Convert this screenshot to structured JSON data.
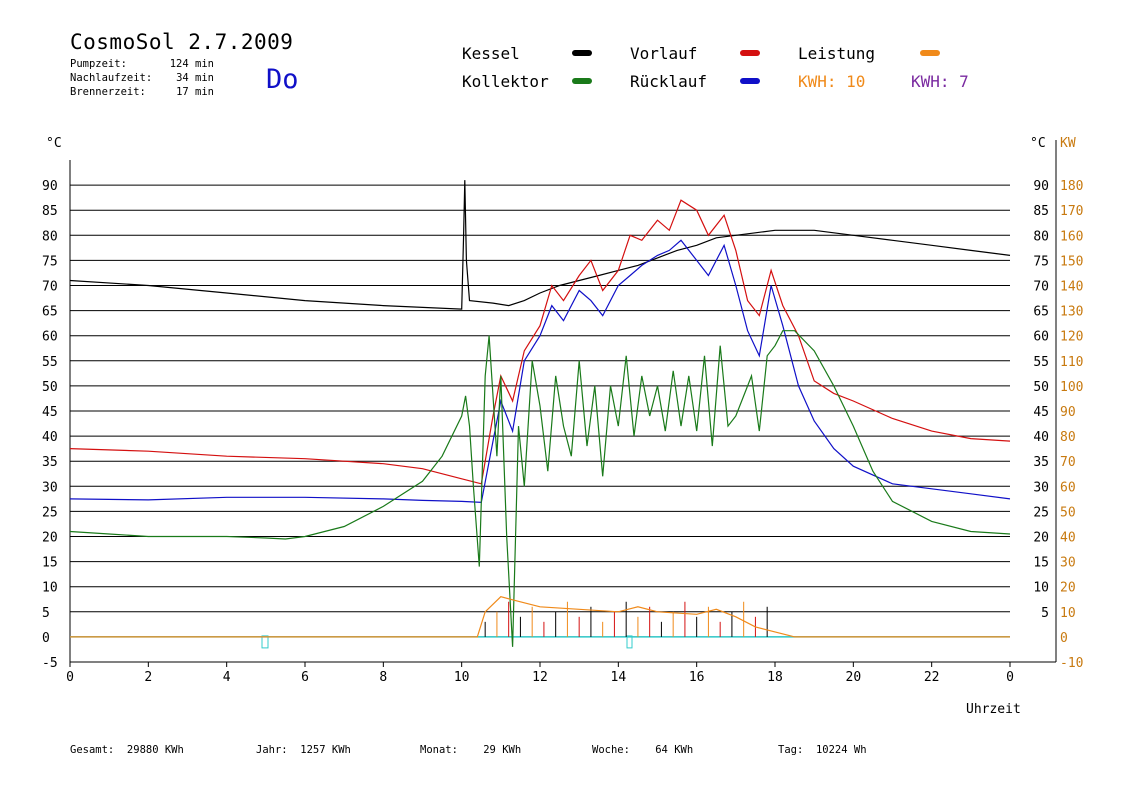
{
  "header": {
    "title": "CosmoSol 2.7.2009",
    "day": "Do",
    "pump_label": "Pumpzeit:",
    "pump_value": "124 min",
    "nachlauf_label": "Nachlaufzeit:",
    "nachlauf_value": "34 min",
    "brenner_label": "Brennerzeit:",
    "brenner_value": "17 min"
  },
  "legend": {
    "kessel": "Kessel",
    "kollektor": "Kollektor",
    "vorlauf": "Vorlauf",
    "ruecklauf": "Rücklauf",
    "leistung": "Leistung",
    "kwh1": "KWH: 10",
    "kwh2": "KWH: 7"
  },
  "colors": {
    "kessel": "#000000",
    "kollektor": "#1a7a1a",
    "vorlauf": "#d41010",
    "ruecklauf": "#1010c8",
    "leistung": "#f08a1a",
    "kwh2": "#7a2aa0",
    "zero_line": "#33cccc"
  },
  "footer": {
    "gesamt_label": "Gesamt:",
    "gesamt_value": "29880 KWh",
    "jahr_label": "Jahr:",
    "jahr_value": "1257 KWh",
    "monat_label": "Monat:",
    "monat_value": "29 KWh",
    "woche_label": "Woche:",
    "woche_value": "64 KWh",
    "tag_label": "Tag:",
    "tag_value": "10224 Wh"
  },
  "chart_data": {
    "type": "line",
    "xlabel": "Uhrzeit",
    "ylabel_left": "°C",
    "ylabel_right_1": "°C",
    "ylabel_right_2": "KW",
    "xlim": [
      0,
      24
    ],
    "ylim": [
      -5,
      95
    ],
    "x_ticks": [
      "0",
      "2",
      "4",
      "6",
      "8",
      "10",
      "12",
      "14",
      "16",
      "18",
      "20",
      "22",
      "0"
    ],
    "y_ticks": [
      "-5",
      "0",
      "5",
      "10",
      "15",
      "20",
      "25",
      "30",
      "35",
      "40",
      "45",
      "50",
      "55",
      "60",
      "65",
      "70",
      "75",
      "80",
      "85",
      "90"
    ],
    "y_ticks_right_degC": [
      "5",
      "10",
      "15",
      "20",
      "25",
      "30",
      "35",
      "40",
      "45",
      "50",
      "55",
      "60",
      "65",
      "70",
      "75",
      "80",
      "85",
      "90"
    ],
    "y_ticks_right_kw": [
      "-10",
      "0",
      "10",
      "20",
      "30",
      "40",
      "50",
      "60",
      "70",
      "80",
      "90",
      "100",
      "110",
      "120",
      "130",
      "140",
      "150",
      "160",
      "170",
      "180"
    ],
    "grid": true,
    "series": [
      {
        "name": "Kessel",
        "color_key": "kessel",
        "points": [
          [
            0,
            71
          ],
          [
            2,
            70
          ],
          [
            4,
            68.5
          ],
          [
            6,
            67
          ],
          [
            8,
            66
          ],
          [
            10,
            65.3
          ],
          [
            10.05,
            80
          ],
          [
            10.08,
            91
          ],
          [
            10.12,
            75
          ],
          [
            10.2,
            67
          ],
          [
            10.8,
            66.5
          ],
          [
            11.2,
            66
          ],
          [
            11.6,
            67
          ],
          [
            12,
            68.5
          ],
          [
            12.5,
            70
          ],
          [
            13,
            71
          ],
          [
            13.5,
            72
          ],
          [
            14,
            73
          ],
          [
            14.5,
            74
          ],
          [
            15,
            75.5
          ],
          [
            15.5,
            77
          ],
          [
            16,
            78
          ],
          [
            16.5,
            79.5
          ],
          [
            17,
            80
          ],
          [
            17.5,
            80.5
          ],
          [
            18,
            81
          ],
          [
            18.5,
            81
          ],
          [
            19,
            81
          ],
          [
            20,
            80
          ],
          [
            21,
            79
          ],
          [
            22,
            78
          ],
          [
            23,
            77
          ],
          [
            24,
            76
          ]
        ]
      },
      {
        "name": "Vorlauf",
        "color_key": "vorlauf",
        "points": [
          [
            0,
            37.5
          ],
          [
            2,
            37
          ],
          [
            4,
            36
          ],
          [
            6,
            35.5
          ],
          [
            8,
            34.5
          ],
          [
            9,
            33.5
          ],
          [
            10,
            31.5
          ],
          [
            10.5,
            30.5
          ],
          [
            10.8,
            44
          ],
          [
            11,
            52
          ],
          [
            11.3,
            47
          ],
          [
            11.6,
            57
          ],
          [
            12,
            62
          ],
          [
            12.3,
            70
          ],
          [
            12.6,
            67
          ],
          [
            13,
            72
          ],
          [
            13.3,
            75
          ],
          [
            13.6,
            69
          ],
          [
            14,
            73
          ],
          [
            14.3,
            80
          ],
          [
            14.6,
            79
          ],
          [
            15,
            83
          ],
          [
            15.3,
            81
          ],
          [
            15.6,
            87
          ],
          [
            16,
            85
          ],
          [
            16.3,
            80
          ],
          [
            16.7,
            84
          ],
          [
            17,
            77
          ],
          [
            17.3,
            67
          ],
          [
            17.6,
            64
          ],
          [
            17.9,
            73
          ],
          [
            18.2,
            66
          ],
          [
            18.6,
            60
          ],
          [
            19,
            51
          ],
          [
            19.5,
            48.5
          ],
          [
            20,
            47
          ],
          [
            21,
            43.5
          ],
          [
            22,
            41
          ],
          [
            23,
            39.5
          ],
          [
            24,
            39
          ]
        ]
      },
      {
        "name": "Rücklauf",
        "color_key": "ruecklauf",
        "points": [
          [
            0,
            27.5
          ],
          [
            2,
            27.3
          ],
          [
            4,
            27.8
          ],
          [
            6,
            27.8
          ],
          [
            8,
            27.5
          ],
          [
            9,
            27.2
          ],
          [
            10,
            27
          ],
          [
            10.5,
            26.8
          ],
          [
            10.8,
            39
          ],
          [
            11,
            47
          ],
          [
            11.3,
            41
          ],
          [
            11.6,
            55
          ],
          [
            12,
            60
          ],
          [
            12.3,
            66
          ],
          [
            12.6,
            63
          ],
          [
            13,
            69
          ],
          [
            13.3,
            67
          ],
          [
            13.6,
            64
          ],
          [
            14,
            70
          ],
          [
            14.3,
            72
          ],
          [
            14.6,
            74
          ],
          [
            15,
            76
          ],
          [
            15.3,
            77
          ],
          [
            15.6,
            79
          ],
          [
            16,
            75
          ],
          [
            16.3,
            72
          ],
          [
            16.7,
            78
          ],
          [
            17,
            70
          ],
          [
            17.3,
            61
          ],
          [
            17.6,
            56
          ],
          [
            17.9,
            70
          ],
          [
            18.2,
            62
          ],
          [
            18.6,
            50
          ],
          [
            19,
            43
          ],
          [
            19.5,
            37.5
          ],
          [
            20,
            34
          ],
          [
            21,
            30.5
          ],
          [
            22,
            29.5
          ],
          [
            23,
            28.5
          ],
          [
            24,
            27.5
          ]
        ]
      },
      {
        "name": "Kollektor",
        "color_key": "kollektor",
        "points": [
          [
            0,
            21
          ],
          [
            1,
            20.5
          ],
          [
            2,
            20
          ],
          [
            3,
            20
          ],
          [
            4,
            20
          ],
          [
            5,
            19.7
          ],
          [
            5.5,
            19.5
          ],
          [
            6,
            20
          ],
          [
            7,
            22
          ],
          [
            8,
            26
          ],
          [
            9,
            31
          ],
          [
            9.5,
            36
          ],
          [
            10,
            44
          ],
          [
            10.1,
            48
          ],
          [
            10.2,
            42
          ],
          [
            10.3,
            30
          ],
          [
            10.45,
            14
          ],
          [
            10.6,
            52
          ],
          [
            10.7,
            60
          ],
          [
            10.9,
            36
          ],
          [
            11,
            52
          ],
          [
            11.15,
            20
          ],
          [
            11.3,
            -2
          ],
          [
            11.45,
            42
          ],
          [
            11.6,
            30
          ],
          [
            11.8,
            55
          ],
          [
            12,
            46
          ],
          [
            12.2,
            33
          ],
          [
            12.4,
            52
          ],
          [
            12.6,
            42
          ],
          [
            12.8,
            36
          ],
          [
            13,
            55
          ],
          [
            13.2,
            38
          ],
          [
            13.4,
            50
          ],
          [
            13.6,
            32
          ],
          [
            13.8,
            50
          ],
          [
            14,
            42
          ],
          [
            14.2,
            56
          ],
          [
            14.4,
            40
          ],
          [
            14.6,
            52
          ],
          [
            14.8,
            44
          ],
          [
            15,
            50
          ],
          [
            15.2,
            41
          ],
          [
            15.4,
            53
          ],
          [
            15.6,
            42
          ],
          [
            15.8,
            52
          ],
          [
            16,
            41
          ],
          [
            16.2,
            56
          ],
          [
            16.4,
            38
          ],
          [
            16.6,
            58
          ],
          [
            16.8,
            42
          ],
          [
            17,
            44
          ],
          [
            17.2,
            48
          ],
          [
            17.4,
            52
          ],
          [
            17.6,
            41
          ],
          [
            17.8,
            56
          ],
          [
            18,
            58
          ],
          [
            18.2,
            61
          ],
          [
            18.5,
            61
          ],
          [
            19,
            57
          ],
          [
            19.5,
            50
          ],
          [
            20,
            42
          ],
          [
            20.5,
            33
          ],
          [
            21,
            27
          ],
          [
            22,
            23
          ],
          [
            23,
            21
          ],
          [
            24,
            20.5
          ]
        ]
      },
      {
        "name": "Leistung",
        "color_key": "leistung",
        "unit": "KW",
        "points": [
          [
            0,
            0
          ],
          [
            10,
            0
          ],
          [
            10.4,
            0
          ],
          [
            10.6,
            10
          ],
          [
            11,
            16
          ],
          [
            11.5,
            14
          ],
          [
            12,
            12
          ],
          [
            13,
            11
          ],
          [
            14,
            10
          ],
          [
            14.5,
            12
          ],
          [
            15,
            10
          ],
          [
            16,
            9
          ],
          [
            16.5,
            11
          ],
          [
            17,
            8
          ],
          [
            17.5,
            4
          ],
          [
            18,
            2
          ],
          [
            18.5,
            0
          ],
          [
            24,
            0
          ]
        ]
      }
    ]
  }
}
